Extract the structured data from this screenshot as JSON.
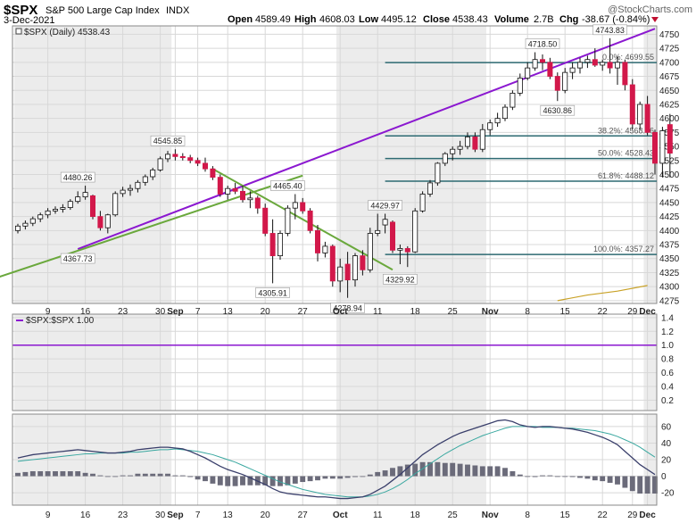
{
  "header": {
    "ticker": "$SPX",
    "name": "S&P 500 Large Cap Index",
    "exchange": "INDX",
    "date": "3-Dec-2021",
    "open_label": "Open",
    "open": "4589.49",
    "high_label": "High",
    "high": "4608.03",
    "low_label": "Low",
    "low": "4495.12",
    "close_label": "Close",
    "close": "4538.43",
    "volume_label": "Volume",
    "volume": "2.7B",
    "chg_label": "Chg",
    "chg": "-38.67 (-0.84%)",
    "brand": "@StockCharts.com"
  },
  "colors": {
    "up": "#ffffff",
    "down": "#d2184a",
    "trend_purple": "#8b18d0",
    "trend_green": "#6aa83c",
    "fib": "#2d6a72",
    "ma": "#c9a227",
    "macd": "#3a3f6b",
    "signal": "#3aa8a0",
    "hist": "#6b6b7a"
  },
  "chart_data": [
    {
      "type": "candlestick",
      "legend": "$SPX (Daily) 4538.43",
      "ylim": [
        4270,
        4765
      ],
      "yticks": [
        4275,
        4300,
        4325,
        4350,
        4375,
        4400,
        4425,
        4450,
        4475,
        4500,
        4525,
        4550,
        4575,
        4600,
        4625,
        4650,
        4675,
        4700,
        4725,
        4750
      ],
      "xticks": [
        {
          "label": "9",
          "i": 4
        },
        {
          "label": "16",
          "i": 9
        },
        {
          "label": "23",
          "i": 14
        },
        {
          "label": "30",
          "i": 19
        },
        {
          "label": "Sep",
          "i": 21,
          "bold": true
        },
        {
          "label": "7",
          "i": 24
        },
        {
          "label": "13",
          "i": 28
        },
        {
          "label": "20",
          "i": 33
        },
        {
          "label": "27",
          "i": 38
        },
        {
          "label": "Oct",
          "i": 43,
          "bold": true
        },
        {
          "label": "11",
          "i": 48
        },
        {
          "label": "18",
          "i": 53
        },
        {
          "label": "25",
          "i": 58
        },
        {
          "label": "Nov",
          "i": 63,
          "bold": true
        },
        {
          "label": "8",
          "i": 68
        },
        {
          "label": "15",
          "i": 73
        },
        {
          "label": "22",
          "i": 78
        },
        {
          "label": "29",
          "i": 82
        },
        {
          "label": "Dec",
          "i": 84,
          "bold": true
        }
      ],
      "candles": [
        [
          4400,
          4412,
          4395,
          4408
        ],
        [
          4408,
          4418,
          4402,
          4413
        ],
        [
          4413,
          4425,
          4408,
          4421
        ],
        [
          4421,
          4432,
          4415,
          4428
        ],
        [
          4428,
          4440,
          4422,
          4435
        ],
        [
          4435,
          4443,
          4430,
          4438
        ],
        [
          4438,
          4447,
          4432,
          4441
        ],
        [
          4441,
          4456,
          4437,
          4452
        ],
        [
          4452,
          4470,
          4448,
          4460
        ],
        [
          4460,
          4480,
          4455,
          4468
        ],
        [
          4462,
          4464,
          4420,
          4425
        ],
        [
          4425,
          4435,
          4400,
          4405
        ],
        [
          4405,
          4430,
          4395,
          4428
        ],
        [
          4428,
          4470,
          4425,
          4466
        ],
        [
          4466,
          4478,
          4460,
          4472
        ],
        [
          4472,
          4482,
          4462,
          4475
        ],
        [
          4475,
          4490,
          4468,
          4486
        ],
        [
          4486,
          4500,
          4480,
          4496
        ],
        [
          4496,
          4512,
          4490,
          4508
        ],
        [
          4508,
          4532,
          4505,
          4528
        ],
        [
          4528,
          4542,
          4522,
          4536
        ],
        [
          4536,
          4545,
          4525,
          4532
        ],
        [
          4532,
          4538,
          4525,
          4530
        ],
        [
          4530,
          4535,
          4520,
          4525
        ],
        [
          4525,
          4530,
          4515,
          4520
        ],
        [
          4520,
          4530,
          4505,
          4510
        ],
        [
          4510,
          4515,
          4490,
          4495
        ],
        [
          4495,
          4500,
          4460,
          4465
        ],
        [
          4465,
          4480,
          4455,
          4475
        ],
        [
          4475,
          4485,
          4465,
          4470
        ],
        [
          4470,
          4480,
          4450,
          4455
        ],
        [
          4455,
          4470,
          4440,
          4458
        ],
        [
          4458,
          4462,
          4430,
          4440
        ],
        [
          4440,
          4448,
          4390,
          4395
        ],
        [
          4395,
          4420,
          4306,
          4355
        ],
        [
          4355,
          4400,
          4348,
          4395
        ],
        [
          4395,
          4445,
          4390,
          4440
        ],
        [
          4440,
          4465,
          4420,
          4450
        ],
        [
          4450,
          4458,
          4430,
          4435
        ],
        [
          4435,
          4440,
          4395,
          4400
        ],
        [
          4400,
          4410,
          4345,
          4360
        ],
        [
          4360,
          4380,
          4352,
          4372
        ],
        [
          4372,
          4375,
          4300,
          4310
        ],
        [
          4310,
          4350,
          4290,
          4335
        ],
        [
          4340,
          4362,
          4280,
          4312
        ],
        [
          4312,
          4360,
          4300,
          4355
        ],
        [
          4355,
          4365,
          4320,
          4330
        ],
        [
          4330,
          4405,
          4325,
          4395
        ],
        [
          4395,
          4430,
          4390,
          4400
        ],
        [
          4410,
          4430,
          4395,
          4420
        ],
        [
          4415,
          4418,
          4360,
          4365
        ],
        [
          4365,
          4375,
          4340,
          4368
        ],
        [
          4368,
          4372,
          4335,
          4362
        ],
        [
          4362,
          4440,
          4360,
          4435
        ],
        [
          4435,
          4470,
          4432,
          4465
        ],
        [
          4465,
          4490,
          4460,
          4485
        ],
        [
          4485,
          4522,
          4480,
          4520
        ],
        [
          4520,
          4540,
          4515,
          4537
        ],
        [
          4537,
          4550,
          4525,
          4545
        ],
        [
          4545,
          4560,
          4535,
          4550
        ],
        [
          4550,
          4575,
          4545,
          4567
        ],
        [
          4567,
          4575,
          4540,
          4545
        ],
        [
          4545,
          4590,
          4540,
          4580
        ],
        [
          4580,
          4598,
          4570,
          4592
        ],
        [
          4592,
          4610,
          4585,
          4600
        ],
        [
          4600,
          4625,
          4595,
          4620
        ],
        [
          4620,
          4650,
          4615,
          4645
        ],
        [
          4645,
          4680,
          4640,
          4672
        ],
        [
          4672,
          4700,
          4668,
          4690
        ],
        [
          4690,
          4718,
          4685,
          4705
        ],
        [
          4705,
          4714,
          4686,
          4700
        ],
        [
          4700,
          4708,
          4670,
          4675
        ],
        [
          4675,
          4682,
          4631,
          4650
        ],
        [
          4650,
          4690,
          4645,
          4682
        ],
        [
          4682,
          4700,
          4670,
          4690
        ],
        [
          4690,
          4708,
          4680,
          4700
        ],
        [
          4700,
          4712,
          4690,
          4705
        ],
        [
          4705,
          4725,
          4692,
          4695
        ],
        [
          4695,
          4705,
          4685,
          4700
        ],
        [
          4700,
          4743,
          4680,
          4690
        ],
        [
          4690,
          4710,
          4660,
          4700
        ],
        [
          4700,
          4705,
          4650,
          4660
        ],
        [
          4660,
          4670,
          4580,
          4590
        ],
        [
          4590,
          4630,
          4580,
          4625
        ],
        [
          4625,
          4640,
          4570,
          4575
        ],
        [
          4575,
          4580,
          4500,
          4520
        ],
        [
          4520,
          4585,
          4495,
          4578
        ],
        [
          4589,
          4608,
          4495,
          4538
        ]
      ],
      "annotations": [
        {
          "text": "4480.26",
          "i": 8,
          "price": 4480
        },
        {
          "text": "4367.73",
          "i": 8,
          "price": 4367
        },
        {
          "text": "4545.85",
          "i": 20,
          "price": 4545
        },
        {
          "text": "4465.40",
          "i": 36,
          "price": 4465
        },
        {
          "text": "4305.91",
          "i": 34,
          "price": 4306
        },
        {
          "text": "4278.94",
          "i": 44,
          "price": 4279
        },
        {
          "text": "4429.97",
          "i": 49,
          "price": 4430
        },
        {
          "text": "4329.92",
          "i": 51,
          "price": 4330
        },
        {
          "text": "4718.50",
          "i": 70,
          "price": 4718
        },
        {
          "text": "4630.86",
          "i": 72,
          "price": 4631
        },
        {
          "text": "4743.83",
          "i": 79,
          "price": 4743
        }
      ],
      "fib_levels": [
        {
          "label": "0.0%: 4699.55",
          "price": 4699.55
        },
        {
          "label": "38.2%: 4568.76",
          "price": 4568.76
        },
        {
          "label": "50.0%: 4528.43",
          "price": 4528.43
        },
        {
          "label": "61.8%: 4488.12",
          "price": 4488.12
        },
        {
          "label": "100.0%: 4357.27",
          "price": 4357.27
        }
      ],
      "trendlines": [
        {
          "name": "purple",
          "from": [
            8,
            4367
          ],
          "to": [
            85,
            4760
          ]
        },
        {
          "name": "green",
          "from": [
            -3,
            4315
          ],
          "to": [
            38,
            4498
          ]
        },
        {
          "name": "green2",
          "from": [
            26,
            4510
          ],
          "to": [
            50,
            4330
          ]
        }
      ],
      "moving_average": [
        [
          72,
          4275
        ],
        [
          76,
          4285
        ],
        [
          80,
          4292
        ],
        [
          84,
          4302
        ]
      ]
    },
    {
      "type": "line",
      "legend": "$SPX:$SPX 1.00",
      "ylim": [
        0.05,
        1.45
      ],
      "yticks": [
        0.2,
        0.4,
        0.6,
        0.8,
        1.0,
        1.2,
        1.4
      ],
      "values": [
        1.0,
        1.0
      ]
    },
    {
      "type": "macd",
      "ylim": [
        -35,
        75
      ],
      "yticks": [
        -20,
        0,
        20,
        40,
        60
      ],
      "macd": [
        22,
        24,
        26,
        27,
        28,
        29,
        30,
        31,
        32,
        31,
        30,
        29,
        28,
        28,
        29,
        30,
        32,
        33,
        34,
        35,
        35,
        34,
        33,
        30,
        26,
        22,
        17,
        12,
        8,
        5,
        2,
        -2,
        -6,
        -10,
        -15,
        -19,
        -21,
        -22,
        -23,
        -24,
        -25,
        -25,
        -26,
        -27,
        -27,
        -26,
        -25,
        -22,
        -17,
        -12,
        -5,
        2,
        10,
        18,
        26,
        32,
        38,
        43,
        48,
        52,
        55,
        58,
        61,
        64,
        67,
        68,
        66,
        62,
        60,
        59,
        60,
        60,
        59,
        58,
        57,
        55,
        53,
        50,
        47,
        43,
        38,
        30,
        22,
        14,
        8,
        2
      ],
      "signal": [
        18,
        19,
        20,
        21,
        22,
        23,
        24,
        25,
        26,
        27,
        27,
        28,
        28,
        28,
        28,
        29,
        29,
        30,
        31,
        32,
        32,
        33,
        32,
        31,
        30,
        28,
        26,
        23,
        20,
        17,
        13,
        9,
        5,
        1,
        -3,
        -7,
        -10,
        -13,
        -16,
        -18,
        -20,
        -22,
        -23,
        -24,
        -25,
        -25,
        -25,
        -24,
        -22,
        -19,
        -15,
        -10,
        -4,
        3,
        9,
        15,
        21,
        27,
        32,
        37,
        41,
        45,
        49,
        52,
        55,
        58,
        60,
        60,
        60,
        60,
        59,
        59,
        59,
        58,
        58,
        57,
        56,
        55,
        53,
        51,
        48,
        44,
        40,
        35,
        29,
        23
      ],
      "histogram": [
        4,
        5,
        6,
        6,
        6,
        6,
        6,
        6,
        6,
        4,
        3,
        1,
        0,
        0,
        1,
        1,
        3,
        3,
        3,
        3,
        3,
        1,
        1,
        -1,
        -4,
        -6,
        -9,
        -11,
        -12,
        -12,
        -11,
        -11,
        -11,
        -11,
        -12,
        -12,
        -11,
        -9,
        -7,
        -6,
        -5,
        -3,
        -3,
        -3,
        -2,
        -1,
        0,
        2,
        5,
        7,
        10,
        12,
        14,
        15,
        17,
        17,
        17,
        16,
        16,
        15,
        14,
        13,
        12,
        12,
        12,
        10,
        6,
        2,
        0,
        -1,
        1,
        1,
        0,
        0,
        -1,
        -2,
        -3,
        -5,
        -6,
        -8,
        -10,
        -14,
        -18,
        -21,
        -21,
        -21
      ]
    }
  ]
}
